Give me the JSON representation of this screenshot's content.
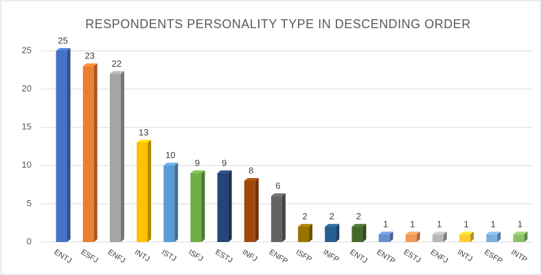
{
  "chart_data": {
    "type": "bar3d",
    "title": "RESPONDENTS PERSONALITY TYPE IN DESCENDING ORDER",
    "categories": [
      "ENTJ",
      "ESFJ",
      "ENFJ",
      "INTJ",
      "ISTJ",
      "ISFJ",
      "ESTJ",
      "INFJ",
      "ENFP",
      "ISFP",
      "INFP",
      "ENTJ",
      "ENTP",
      "ESTJ",
      "ENFJ",
      "INTJ",
      "ESFP",
      "INTP"
    ],
    "values": [
      25,
      23,
      22,
      13,
      10,
      9,
      9,
      8,
      6,
      2,
      2,
      2,
      1,
      1,
      1,
      1,
      1,
      1
    ],
    "colors": [
      "#4472c4",
      "#ed7d31",
      "#a5a5a5",
      "#ffc000",
      "#5b9bd5",
      "#70ad47",
      "#264478",
      "#9e480e",
      "#636363",
      "#997300",
      "#255e91",
      "#43682b",
      "#698ed0",
      "#f1975a",
      "#b7b7b7",
      "#ffcd33",
      "#7cafdd",
      "#8cc168"
    ],
    "ylim": [
      0,
      25
    ],
    "yticks": [
      0,
      5,
      10,
      15,
      20,
      25
    ],
    "grid": true
  }
}
